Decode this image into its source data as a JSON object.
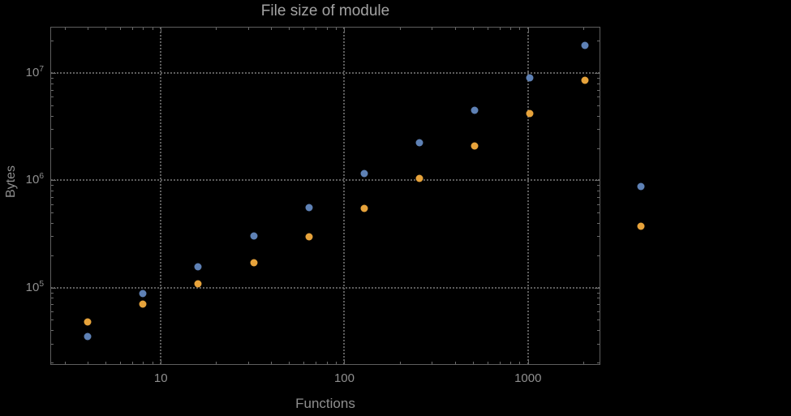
{
  "chart_data": {
    "type": "scatter",
    "title": "File size of module",
    "xlabel": "Functions",
    "ylabel": "Bytes",
    "x_scale": "log",
    "y_scale": "log",
    "x_range": [
      2.5,
      2480
    ],
    "y_range": [
      19000,
      27000000
    ],
    "x_major_ticks": [
      10,
      100,
      1000
    ],
    "y_major_ticks": [
      100000,
      1000000,
      10000000
    ],
    "grid": "dotted gridlines at major ticks",
    "series": [
      {
        "name": "series-blue",
        "color": "#5e81b5",
        "x": [
          4,
          8,
          16,
          32,
          64,
          128,
          256,
          512,
          1024,
          2048
        ],
        "y": [
          35000,
          88000,
          155000,
          300000,
          560000,
          1150000,
          2250000,
          4500000,
          9000000,
          18000000
        ]
      },
      {
        "name": "series-orange",
        "color": "#e7a33b",
        "x": [
          4,
          8,
          16,
          32,
          64,
          128,
          256,
          512,
          1024,
          2048
        ],
        "y": [
          48000,
          70000,
          108000,
          170000,
          295000,
          550000,
          1050000,
          2100000,
          4200000,
          8500000
        ]
      }
    ],
    "legend_markers": [
      {
        "name": "legend-marker-blue",
        "color": "#5e81b5",
        "y": 880000
      },
      {
        "name": "legend-marker-orange",
        "color": "#e7a33b",
        "y": 370000
      }
    ]
  },
  "colors": {
    "background": "#000000",
    "frame": "#5e5e5e",
    "grid": "#5d5d5d",
    "tick": "#6b6b6b",
    "label_text": "#8f8f8f",
    "title_text": "#a3a3a3"
  }
}
